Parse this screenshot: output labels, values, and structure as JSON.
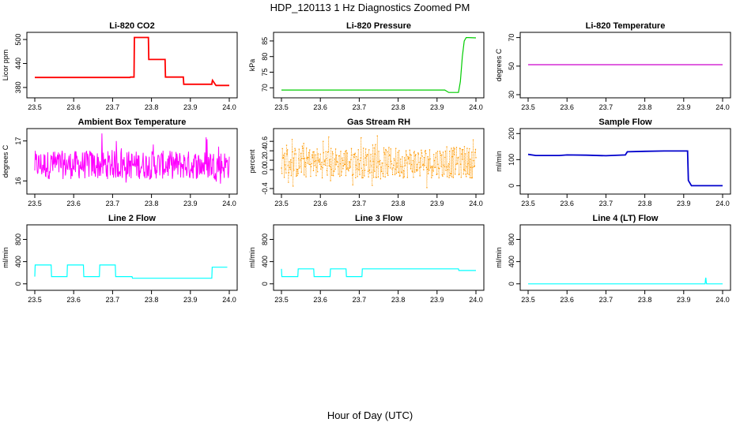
{
  "figure_title": "HDP_120113  1 Hz Diagnostics Zoomed PM",
  "x_axis_label": "Hour of Day (UTC)",
  "chart_data": [
    {
      "id": "co2",
      "type": "line",
      "title": "Li-820 CO2",
      "ylabel": "Licor ppm",
      "color": "#ff0000",
      "xlim": [
        23.5,
        24.0
      ],
      "ylim": [
        362,
        512
      ],
      "xticks": [
        23.5,
        23.6,
        23.7,
        23.8,
        23.9,
        24.0
      ],
      "yticks": [
        380,
        440,
        500
      ],
      "series": [
        {
          "name": "CO2",
          "x": [
            23.5,
            23.745,
            23.746,
            23.755,
            23.756,
            23.792,
            23.793,
            23.835,
            23.836,
            23.882,
            23.883,
            23.955,
            23.956,
            23.957,
            23.965,
            23.966,
            24.0
          ],
          "y": [
            405,
            405,
            406,
            406,
            505,
            505,
            450,
            450,
            406,
            406,
            388,
            388,
            395,
            398,
            386,
            385,
            385
          ]
        }
      ]
    },
    {
      "id": "pressure",
      "type": "line",
      "title": "Li-820 Pressure",
      "ylabel": "kPa",
      "color": "#00cc00",
      "xlim": [
        23.5,
        24.0
      ],
      "ylim": [
        67.8,
        87.0
      ],
      "xticks": [
        23.5,
        23.6,
        23.7,
        23.8,
        23.9,
        24.0
      ],
      "yticks": [
        70,
        75,
        80,
        85
      ],
      "series": [
        {
          "name": "Pressure",
          "x": [
            23.5,
            23.75,
            23.92,
            23.93,
            23.955,
            23.96,
            23.965,
            23.97,
            23.975,
            23.98,
            24.0
          ],
          "y": [
            69.3,
            69.3,
            69.3,
            68.5,
            68.5,
            72,
            80,
            85,
            86.1,
            86.1,
            86.0
          ]
        }
      ]
    },
    {
      "id": "temperature",
      "type": "line",
      "title": "Li-820 Temperature",
      "ylabel": "degrees C",
      "color": "#cc00cc",
      "xlim": [
        23.5,
        24.0
      ],
      "ylim": [
        30,
        72
      ],
      "xticks": [
        23.5,
        23.6,
        23.7,
        23.8,
        23.9,
        24.0
      ],
      "yticks": [
        30,
        50,
        70
      ],
      "series": [
        {
          "name": "Temperature",
          "x": [
            23.5,
            24.0
          ],
          "y": [
            51,
            51
          ]
        }
      ]
    },
    {
      "id": "ambient",
      "type": "line",
      "title": "Ambient Box Temperature",
      "ylabel": "degrees C",
      "color": "#ff00ff",
      "xlim": [
        23.5,
        24.0
      ],
      "ylim": [
        15.75,
        17.25
      ],
      "xticks": [
        23.5,
        23.6,
        23.7,
        23.8,
        23.9,
        24.0
      ],
      "yticks": [
        16.0,
        17.0
      ],
      "series": [
        {
          "name": "Ambient",
          "x": [
            23.5,
            24.0
          ],
          "y": [
            16.4,
            16.4
          ],
          "noise_range": [
            15.9,
            17.2
          ]
        }
      ]
    },
    {
      "id": "rh",
      "type": "scatter",
      "title": "Gas Stream RH",
      "ylabel": "percent",
      "color": "#ff9900",
      "xlim": [
        23.5,
        24.0
      ],
      "ylim": [
        -0.45,
        0.82
      ],
      "xticks": [
        23.5,
        23.6,
        23.7,
        23.8,
        23.9,
        24.0
      ],
      "yticks": [
        -0.4,
        0.0,
        0.2,
        0.4,
        0.6
      ],
      "series": [
        {
          "name": "RH",
          "x": [
            23.5,
            24.0
          ],
          "y": [
            0.15,
            0.15
          ],
          "noise_range": [
            -0.4,
            0.78
          ]
        }
      ]
    },
    {
      "id": "sample_flow",
      "type": "line",
      "title": "Sample Flow",
      "ylabel": "ml/min",
      "color": "#0000cc",
      "xlim": [
        23.5,
        24.0
      ],
      "ylim": [
        -20,
        210
      ],
      "xticks": [
        23.5,
        23.6,
        23.7,
        23.8,
        23.9,
        24.0
      ],
      "yticks": [
        0,
        100,
        200
      ],
      "series": [
        {
          "name": "Sample Flow",
          "x": [
            23.5,
            23.52,
            23.58,
            23.6,
            23.65,
            23.7,
            23.75,
            23.755,
            23.8,
            23.85,
            23.91,
            23.912,
            23.92,
            24.0
          ],
          "y": [
            120,
            116,
            116,
            118,
            117,
            115,
            118,
            130,
            132,
            133,
            133,
            20,
            0,
            0
          ]
        }
      ]
    },
    {
      "id": "line2",
      "type": "line",
      "title": "Line 2 Flow",
      "ylabel": "ml/min",
      "color": "#00ffff",
      "xlim": [
        23.5,
        24.0
      ],
      "ylim": [
        -60,
        1020
      ],
      "xticks": [
        23.5,
        23.6,
        23.7,
        23.8,
        23.9,
        24.0
      ],
      "yticks": [
        0,
        400,
        800
      ],
      "series": [
        {
          "name": "Line 2",
          "x": [
            23.5,
            23.501,
            23.542,
            23.543,
            23.583,
            23.584,
            23.625,
            23.626,
            23.666,
            23.667,
            23.707,
            23.708,
            23.75,
            23.751,
            23.955,
            23.956,
            23.995
          ],
          "y": [
            130,
            340,
            340,
            130,
            130,
            340,
            340,
            130,
            130,
            340,
            340,
            130,
            130,
            100,
            100,
            300,
            300
          ]
        }
      ]
    },
    {
      "id": "line3",
      "type": "line",
      "title": "Line 3 Flow",
      "ylabel": "ml/min",
      "color": "#00ffff",
      "xlim": [
        23.5,
        24.0
      ],
      "ylim": [
        -60,
        1020
      ],
      "xticks": [
        23.5,
        23.6,
        23.7,
        23.8,
        23.9,
        24.0
      ],
      "yticks": [
        0,
        400,
        800
      ],
      "series": [
        {
          "name": "Line 3",
          "x": [
            23.5,
            23.501,
            23.542,
            23.543,
            23.583,
            23.584,
            23.625,
            23.626,
            23.666,
            23.667,
            23.707,
            23.708,
            23.955,
            23.956,
            24.0
          ],
          "y": [
            270,
            130,
            130,
            270,
            270,
            130,
            130,
            270,
            270,
            130,
            130,
            270,
            270,
            240,
            240
          ]
        }
      ]
    },
    {
      "id": "line4",
      "type": "line",
      "title": "Line 4 (LT) Flow",
      "ylabel": "ml/min",
      "color": "#00ffff",
      "xlim": [
        23.5,
        24.0
      ],
      "ylim": [
        -60,
        1020
      ],
      "xticks": [
        23.5,
        23.6,
        23.7,
        23.8,
        23.9,
        24.0
      ],
      "yticks": [
        0,
        400,
        800
      ],
      "series": [
        {
          "name": "Line 4",
          "x": [
            23.5,
            23.955,
            23.956,
            23.957,
            23.958,
            23.959,
            24.0
          ],
          "y": [
            0,
            0,
            80,
            110,
            30,
            0,
            0
          ]
        }
      ]
    }
  ]
}
